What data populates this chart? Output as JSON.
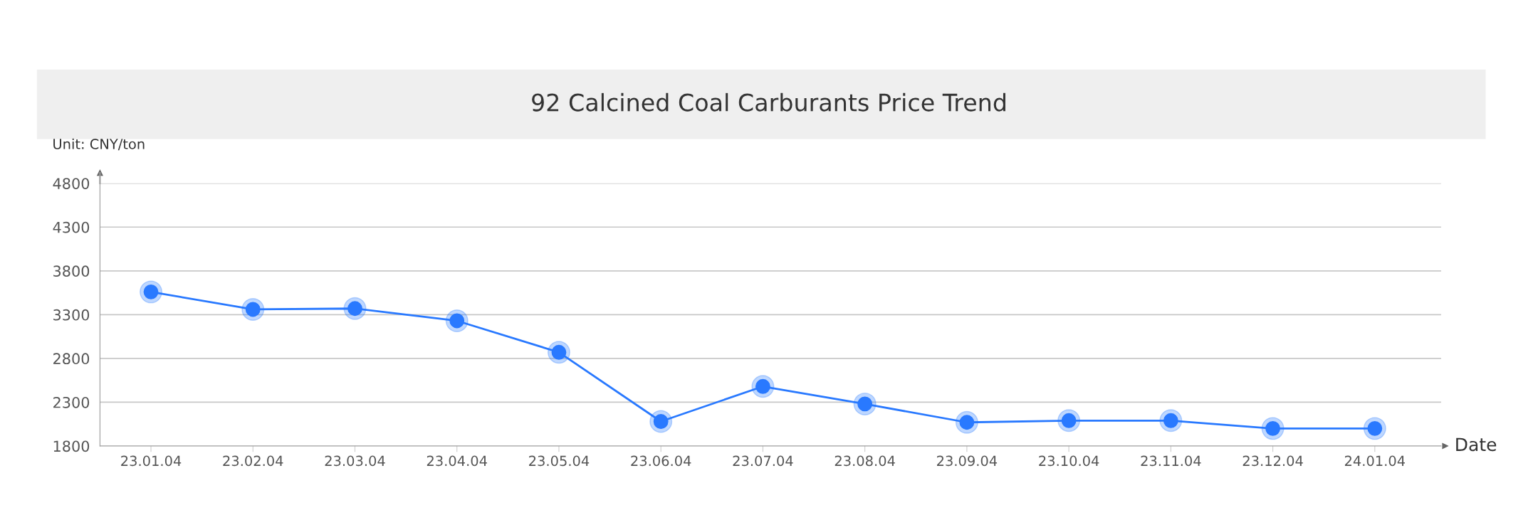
{
  "chart_data": {
    "type": "line",
    "title": "92 Calcined Coal Carburants Price Trend",
    "ylabel": "Unit: CNY/ton",
    "xlabel": "Date",
    "categories": [
      "23.01.04",
      "23.02.04",
      "23.03.04",
      "23.04.04",
      "23.05.04",
      "23.06.04",
      "23.07.04",
      "23.08.04",
      "23.09.04",
      "23.10.04",
      "23.11.04",
      "23.12.04",
      "24.01.04"
    ],
    "series": [
      {
        "color": "#2979ff",
        "values": [
          3560,
          3360,
          3370,
          3230,
          2870,
          2080,
          2480,
          2280,
          2070,
          2090,
          2090,
          2000,
          2000
        ]
      }
    ],
    "ylim": [
      1800,
      4800
    ],
    "yticks": [
      1800,
      2300,
      2800,
      3300,
      3800,
      4300,
      4800
    ],
    "grid": "y",
    "marker": "circle",
    "line_style": "solid"
  }
}
